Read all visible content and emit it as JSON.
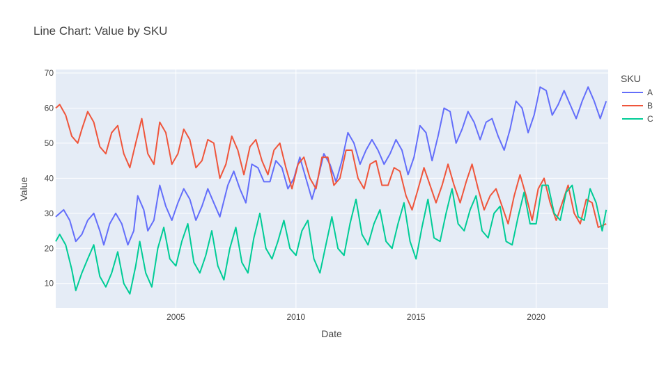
{
  "chart_data": {
    "type": "line",
    "title": "Line Chart: Value by SKU",
    "xlabel": "Date",
    "ylabel": "Value",
    "xlim": [
      "2000-01-01",
      "2022-12-31"
    ],
    "ylim": [
      3,
      71
    ],
    "xticks": [
      {
        "label": "2005",
        "date": "2005-01-01"
      },
      {
        "label": "2010",
        "date": "2010-01-01"
      },
      {
        "label": "2015",
        "date": "2015-01-01"
      },
      {
        "label": "2020",
        "date": "2020-01-01"
      }
    ],
    "yticks": [
      10,
      20,
      30,
      40,
      50,
      60,
      70
    ],
    "grid": true,
    "legend": {
      "title": "SKU",
      "position": "right"
    },
    "series": [
      {
        "name": "A",
        "color": "#636efa",
        "points": [
          [
            "2000-01-01",
            29
          ],
          [
            "2000-05-01",
            31
          ],
          [
            "2000-08-01",
            28
          ],
          [
            "2000-11-01",
            22
          ],
          [
            "2001-02-01",
            24
          ],
          [
            "2001-05-01",
            28
          ],
          [
            "2001-08-01",
            30
          ],
          [
            "2001-11-01",
            25
          ],
          [
            "2002-01-01",
            21
          ],
          [
            "2002-04-01",
            27
          ],
          [
            "2002-07-01",
            30
          ],
          [
            "2002-10-01",
            27
          ],
          [
            "2003-01-01",
            21
          ],
          [
            "2003-04-01",
            25
          ],
          [
            "2003-06-01",
            35
          ],
          [
            "2003-09-01",
            31
          ],
          [
            "2003-11-01",
            25
          ],
          [
            "2004-02-01",
            28
          ],
          [
            "2004-05-01",
            38
          ],
          [
            "2004-08-01",
            32
          ],
          [
            "2004-11-01",
            28
          ],
          [
            "2005-02-01",
            33
          ],
          [
            "2005-05-01",
            37
          ],
          [
            "2005-08-01",
            34
          ],
          [
            "2005-11-01",
            28
          ],
          [
            "2006-02-01",
            32
          ],
          [
            "2006-05-01",
            37
          ],
          [
            "2006-08-01",
            33
          ],
          [
            "2006-11-01",
            29
          ],
          [
            "2007-03-01",
            38
          ],
          [
            "2007-06-01",
            42
          ],
          [
            "2007-09-01",
            37
          ],
          [
            "2007-12-01",
            33
          ],
          [
            "2008-03-01",
            44
          ],
          [
            "2008-06-01",
            43
          ],
          [
            "2008-09-01",
            39
          ],
          [
            "2008-12-01",
            39
          ],
          [
            "2009-03-01",
            45
          ],
          [
            "2009-06-01",
            43
          ],
          [
            "2009-09-01",
            37
          ],
          [
            "2009-12-01",
            40
          ],
          [
            "2010-03-01",
            46
          ],
          [
            "2010-06-01",
            40
          ],
          [
            "2010-09-01",
            34
          ],
          [
            "2010-12-01",
            40
          ],
          [
            "2011-03-01",
            47
          ],
          [
            "2011-06-01",
            44
          ],
          [
            "2011-09-01",
            39
          ],
          [
            "2011-12-01",
            45
          ],
          [
            "2012-03-01",
            53
          ],
          [
            "2012-06-01",
            50
          ],
          [
            "2012-09-01",
            44
          ],
          [
            "2012-12-01",
            48
          ],
          [
            "2013-03-01",
            51
          ],
          [
            "2013-06-01",
            48
          ],
          [
            "2013-09-01",
            44
          ],
          [
            "2013-12-01",
            47
          ],
          [
            "2014-03-01",
            51
          ],
          [
            "2014-06-01",
            48
          ],
          [
            "2014-09-01",
            41
          ],
          [
            "2014-12-01",
            46
          ],
          [
            "2015-03-01",
            55
          ],
          [
            "2015-06-01",
            53
          ],
          [
            "2015-09-01",
            45
          ],
          [
            "2015-12-01",
            52
          ],
          [
            "2016-03-01",
            60
          ],
          [
            "2016-06-01",
            59
          ],
          [
            "2016-09-01",
            50
          ],
          [
            "2016-12-01",
            54
          ],
          [
            "2017-03-01",
            59
          ],
          [
            "2017-06-01",
            56
          ],
          [
            "2017-09-01",
            51
          ],
          [
            "2017-12-01",
            56
          ],
          [
            "2018-03-01",
            57
          ],
          [
            "2018-06-01",
            52
          ],
          [
            "2018-09-01",
            48
          ],
          [
            "2018-12-01",
            54
          ],
          [
            "2019-03-01",
            62
          ],
          [
            "2019-06-01",
            60
          ],
          [
            "2019-09-01",
            53
          ],
          [
            "2019-12-01",
            58
          ],
          [
            "2020-03-01",
            66
          ],
          [
            "2020-06-01",
            65
          ],
          [
            "2020-09-01",
            58
          ],
          [
            "2020-12-01",
            61
          ],
          [
            "2021-03-01",
            65
          ],
          [
            "2021-06-01",
            61
          ],
          [
            "2021-09-01",
            57
          ],
          [
            "2021-12-01",
            62
          ],
          [
            "2022-03-01",
            66
          ],
          [
            "2022-06-01",
            62
          ],
          [
            "2022-09-01",
            57
          ],
          [
            "2022-12-01",
            62
          ]
        ]
      },
      {
        "name": "B",
        "color": "#ef553b",
        "points": [
          [
            "2000-01-01",
            60
          ],
          [
            "2000-03-01",
            61
          ],
          [
            "2000-06-01",
            58
          ],
          [
            "2000-09-01",
            52
          ],
          [
            "2000-12-01",
            50
          ],
          [
            "2001-02-01",
            54
          ],
          [
            "2001-05-01",
            59
          ],
          [
            "2001-08-01",
            56
          ],
          [
            "2001-11-01",
            49
          ],
          [
            "2002-02-01",
            47
          ],
          [
            "2002-05-01",
            53
          ],
          [
            "2002-08-01",
            55
          ],
          [
            "2002-11-01",
            47
          ],
          [
            "2003-02-01",
            43
          ],
          [
            "2003-05-01",
            50
          ],
          [
            "2003-08-01",
            57
          ],
          [
            "2003-11-01",
            47
          ],
          [
            "2004-02-01",
            44
          ],
          [
            "2004-05-01",
            56
          ],
          [
            "2004-08-01",
            53
          ],
          [
            "2004-11-01",
            44
          ],
          [
            "2005-02-01",
            47
          ],
          [
            "2005-05-01",
            54
          ],
          [
            "2005-08-01",
            51
          ],
          [
            "2005-11-01",
            43
          ],
          [
            "2006-02-01",
            45
          ],
          [
            "2006-05-01",
            51
          ],
          [
            "2006-08-01",
            50
          ],
          [
            "2006-11-01",
            40
          ],
          [
            "2007-02-01",
            44
          ],
          [
            "2007-05-01",
            52
          ],
          [
            "2007-08-01",
            48
          ],
          [
            "2007-11-01",
            41
          ],
          [
            "2008-02-01",
            49
          ],
          [
            "2008-05-01",
            51
          ],
          [
            "2008-08-01",
            45
          ],
          [
            "2008-11-01",
            41
          ],
          [
            "2009-02-01",
            48
          ],
          [
            "2009-05-01",
            50
          ],
          [
            "2009-08-01",
            43
          ],
          [
            "2009-11-01",
            37
          ],
          [
            "2010-02-01",
            44
          ],
          [
            "2010-05-01",
            46
          ],
          [
            "2010-08-01",
            40
          ],
          [
            "2010-11-01",
            37
          ],
          [
            "2011-02-01",
            46
          ],
          [
            "2011-05-01",
            46
          ],
          [
            "2011-08-01",
            38
          ],
          [
            "2011-11-01",
            40
          ],
          [
            "2012-02-01",
            48
          ],
          [
            "2012-05-01",
            48
          ],
          [
            "2012-08-01",
            40
          ],
          [
            "2012-11-01",
            37
          ],
          [
            "2013-02-01",
            44
          ],
          [
            "2013-05-01",
            45
          ],
          [
            "2013-08-01",
            38
          ],
          [
            "2013-11-01",
            38
          ],
          [
            "2014-02-01",
            43
          ],
          [
            "2014-05-01",
            42
          ],
          [
            "2014-08-01",
            35
          ],
          [
            "2014-11-01",
            31
          ],
          [
            "2015-02-01",
            37
          ],
          [
            "2015-05-01",
            43
          ],
          [
            "2015-08-01",
            38
          ],
          [
            "2015-11-01",
            33
          ],
          [
            "2016-02-01",
            38
          ],
          [
            "2016-05-01",
            44
          ],
          [
            "2016-08-01",
            38
          ],
          [
            "2016-11-01",
            33
          ],
          [
            "2017-02-01",
            39
          ],
          [
            "2017-05-01",
            44
          ],
          [
            "2017-08-01",
            37
          ],
          [
            "2017-11-01",
            31
          ],
          [
            "2018-02-01",
            35
          ],
          [
            "2018-05-01",
            37
          ],
          [
            "2018-08-01",
            32
          ],
          [
            "2018-11-01",
            27
          ],
          [
            "2019-02-01",
            35
          ],
          [
            "2019-05-01",
            41
          ],
          [
            "2019-08-01",
            35
          ],
          [
            "2019-11-01",
            28
          ],
          [
            "2020-02-01",
            37
          ],
          [
            "2020-05-01",
            40
          ],
          [
            "2020-08-01",
            33
          ],
          [
            "2020-11-01",
            28
          ],
          [
            "2021-02-01",
            33
          ],
          [
            "2021-05-01",
            38
          ],
          [
            "2021-08-01",
            30
          ],
          [
            "2021-11-01",
            27
          ],
          [
            "2022-02-01",
            34
          ],
          [
            "2022-05-01",
            33
          ],
          [
            "2022-08-01",
            26
          ],
          [
            "2022-12-01",
            27
          ]
        ]
      },
      {
        "name": "C",
        "color": "#00cc96",
        "points": [
          [
            "2000-01-01",
            22
          ],
          [
            "2000-03-01",
            24
          ],
          [
            "2000-06-01",
            21
          ],
          [
            "2000-09-01",
            14
          ],
          [
            "2000-11-01",
            8
          ],
          [
            "2001-02-01",
            13
          ],
          [
            "2001-05-01",
            17
          ],
          [
            "2001-08-01",
            21
          ],
          [
            "2001-11-01",
            12
          ],
          [
            "2002-02-01",
            9
          ],
          [
            "2002-05-01",
            13
          ],
          [
            "2002-08-01",
            19
          ],
          [
            "2002-11-01",
            10
          ],
          [
            "2003-02-01",
            7
          ],
          [
            "2003-05-01",
            15
          ],
          [
            "2003-07-01",
            22
          ],
          [
            "2003-10-01",
            13
          ],
          [
            "2004-01-01",
            9
          ],
          [
            "2004-04-01",
            20
          ],
          [
            "2004-07-01",
            26
          ],
          [
            "2004-10-01",
            17
          ],
          [
            "2005-01-01",
            15
          ],
          [
            "2005-04-01",
            22
          ],
          [
            "2005-07-01",
            27
          ],
          [
            "2005-10-01",
            16
          ],
          [
            "2006-01-01",
            13
          ],
          [
            "2006-04-01",
            18
          ],
          [
            "2006-07-01",
            25
          ],
          [
            "2006-10-01",
            15
          ],
          [
            "2007-01-01",
            11
          ],
          [
            "2007-04-01",
            20
          ],
          [
            "2007-07-01",
            26
          ],
          [
            "2007-10-01",
            16
          ],
          [
            "2008-01-01",
            13
          ],
          [
            "2008-04-01",
            23
          ],
          [
            "2008-07-01",
            30
          ],
          [
            "2008-10-01",
            20
          ],
          [
            "2009-01-01",
            17
          ],
          [
            "2009-04-01",
            22
          ],
          [
            "2009-07-01",
            28
          ],
          [
            "2009-10-01",
            20
          ],
          [
            "2010-01-01",
            18
          ],
          [
            "2010-04-01",
            25
          ],
          [
            "2010-07-01",
            28
          ],
          [
            "2010-10-01",
            17
          ],
          [
            "2011-01-01",
            13
          ],
          [
            "2011-04-01",
            21
          ],
          [
            "2011-07-01",
            29
          ],
          [
            "2011-10-01",
            20
          ],
          [
            "2012-01-01",
            18
          ],
          [
            "2012-04-01",
            27
          ],
          [
            "2012-07-01",
            34
          ],
          [
            "2012-10-01",
            24
          ],
          [
            "2013-01-01",
            21
          ],
          [
            "2013-04-01",
            27
          ],
          [
            "2013-07-01",
            31
          ],
          [
            "2013-10-01",
            22
          ],
          [
            "2014-01-01",
            20
          ],
          [
            "2014-04-01",
            27
          ],
          [
            "2014-07-01",
            33
          ],
          [
            "2014-10-01",
            22
          ],
          [
            "2015-01-01",
            17
          ],
          [
            "2015-04-01",
            26
          ],
          [
            "2015-07-01",
            34
          ],
          [
            "2015-10-01",
            23
          ],
          [
            "2016-01-01",
            22
          ],
          [
            "2016-04-01",
            30
          ],
          [
            "2016-07-01",
            37
          ],
          [
            "2016-10-01",
            27
          ],
          [
            "2017-01-01",
            25
          ],
          [
            "2017-04-01",
            31
          ],
          [
            "2017-07-01",
            35
          ],
          [
            "2017-10-01",
            25
          ],
          [
            "2018-01-01",
            23
          ],
          [
            "2018-04-01",
            30
          ],
          [
            "2018-07-01",
            32
          ],
          [
            "2018-10-01",
            22
          ],
          [
            "2019-01-01",
            21
          ],
          [
            "2019-04-01",
            29
          ],
          [
            "2019-07-01",
            36
          ],
          [
            "2019-10-01",
            27
          ],
          [
            "2020-01-01",
            27
          ],
          [
            "2020-04-01",
            38
          ],
          [
            "2020-07-01",
            38
          ],
          [
            "2020-10-01",
            30
          ],
          [
            "2021-01-01",
            28
          ],
          [
            "2021-04-01",
            36
          ],
          [
            "2021-07-01",
            38
          ],
          [
            "2021-10-01",
            29
          ],
          [
            "2022-01-01",
            28
          ],
          [
            "2022-04-01",
            37
          ],
          [
            "2022-07-01",
            33
          ],
          [
            "2022-10-01",
            25
          ],
          [
            "2022-12-01",
            31
          ]
        ]
      }
    ]
  }
}
